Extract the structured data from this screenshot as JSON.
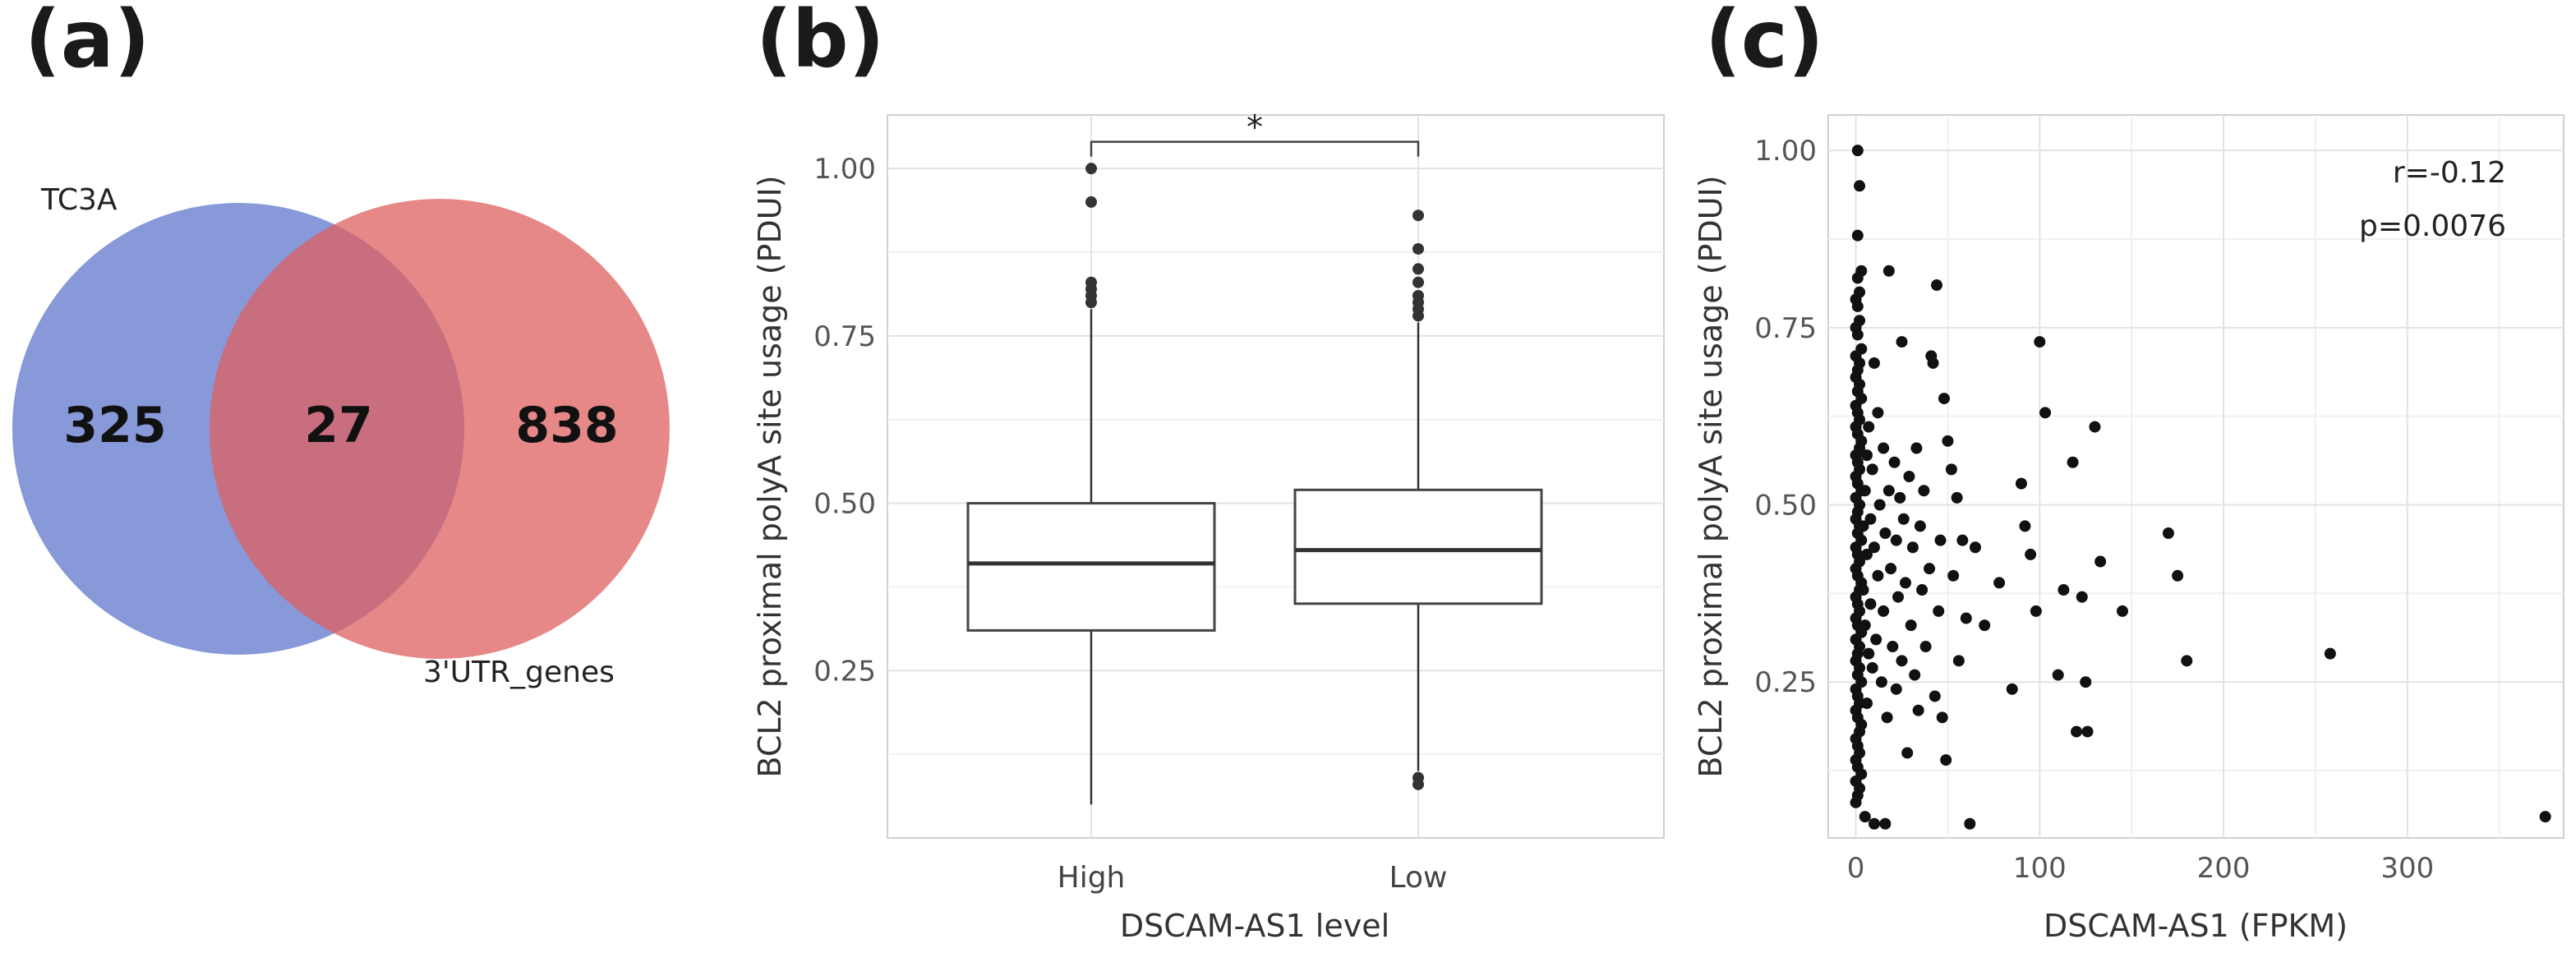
{
  "panels": {
    "a": "(a)",
    "b": "(b)",
    "c": "(c)"
  },
  "chart_data": [
    {
      "type": "venn",
      "sets": [
        {
          "name": "TC3A",
          "only_count": "325",
          "color": "#5f77cc"
        },
        {
          "name": "3'UTR_genes",
          "only_count": "838",
          "color": "#de6060"
        }
      ],
      "intersection": "27"
    },
    {
      "type": "box",
      "xlabel": "DSCAM-AS1 level",
      "ylabel": "BCL2 proximal polyA site usage (PDUI)",
      "ylim": [
        0.0,
        1.08
      ],
      "yticks": [
        "0.25",
        "0.50",
        "0.75",
        "1.00"
      ],
      "significance": "*",
      "groups": [
        {
          "name": "High",
          "min": 0.05,
          "q1": 0.31,
          "median": 0.41,
          "q3": 0.5,
          "max": 0.79,
          "outliers": [
            0.8,
            0.81,
            0.82,
            0.83,
            0.95,
            1.0
          ]
        },
        {
          "name": "Low",
          "min": 0.1,
          "q1": 0.35,
          "median": 0.43,
          "q3": 0.52,
          "max": 0.77,
          "outliers": [
            0.08,
            0.09,
            0.78,
            0.79,
            0.8,
            0.81,
            0.83,
            0.85,
            0.88,
            0.93
          ]
        }
      ]
    },
    {
      "type": "scatter",
      "xlabel": "DSCAM-AS1 (FPKM)",
      "ylabel": "BCL2 proximal polyA site usage (PDUI)",
      "xlim": [
        -15,
        385
      ],
      "ylim": [
        0.03,
        1.05
      ],
      "xticks": [
        "0",
        "100",
        "200",
        "300"
      ],
      "yticks": [
        "0.25",
        "0.50",
        "0.75",
        "1.00"
      ],
      "annotation": [
        "r=-0.12",
        "p=0.0076"
      ],
      "points": [
        [
          1,
          1.0
        ],
        [
          2,
          0.95
        ],
        [
          1,
          0.88
        ],
        [
          3,
          0.83
        ],
        [
          1,
          0.82
        ],
        [
          2,
          0.8
        ],
        [
          0,
          0.79
        ],
        [
          1,
          0.78
        ],
        [
          2,
          0.76
        ],
        [
          0,
          0.75
        ],
        [
          1,
          0.74
        ],
        [
          3,
          0.72
        ],
        [
          0,
          0.71
        ],
        [
          2,
          0.7
        ],
        [
          1,
          0.69
        ],
        [
          0,
          0.68
        ],
        [
          2,
          0.67
        ],
        [
          1,
          0.66
        ],
        [
          3,
          0.65
        ],
        [
          0,
          0.64
        ],
        [
          1,
          0.63
        ],
        [
          2,
          0.62
        ],
        [
          0,
          0.61
        ],
        [
          1,
          0.6
        ],
        [
          3,
          0.59
        ],
        [
          2,
          0.58
        ],
        [
          0,
          0.57
        ],
        [
          1,
          0.56
        ],
        [
          2,
          0.55
        ],
        [
          0,
          0.54
        ],
        [
          1,
          0.53
        ],
        [
          3,
          0.52
        ],
        [
          0,
          0.51
        ],
        [
          2,
          0.5
        ],
        [
          1,
          0.49
        ],
        [
          0,
          0.48
        ],
        [
          2,
          0.47
        ],
        [
          1,
          0.46
        ],
        [
          3,
          0.45
        ],
        [
          0,
          0.44
        ],
        [
          1,
          0.43
        ],
        [
          2,
          0.42
        ],
        [
          0,
          0.41
        ],
        [
          1,
          0.4
        ],
        [
          3,
          0.39
        ],
        [
          2,
          0.38
        ],
        [
          0,
          0.37
        ],
        [
          1,
          0.36
        ],
        [
          2,
          0.35
        ],
        [
          0,
          0.34
        ],
        [
          1,
          0.33
        ],
        [
          3,
          0.32
        ],
        [
          0,
          0.31
        ],
        [
          2,
          0.3
        ],
        [
          1,
          0.29
        ],
        [
          0,
          0.28
        ],
        [
          2,
          0.27
        ],
        [
          1,
          0.26
        ],
        [
          3,
          0.25
        ],
        [
          0,
          0.24
        ],
        [
          1,
          0.23
        ],
        [
          2,
          0.22
        ],
        [
          0,
          0.21
        ],
        [
          1,
          0.2
        ],
        [
          3,
          0.19
        ],
        [
          2,
          0.18
        ],
        [
          0,
          0.17
        ],
        [
          1,
          0.16
        ],
        [
          2,
          0.15
        ],
        [
          0,
          0.14
        ],
        [
          1,
          0.13
        ],
        [
          3,
          0.12
        ],
        [
          0,
          0.11
        ],
        [
          2,
          0.1
        ],
        [
          1,
          0.09
        ],
        [
          0,
          0.08
        ],
        [
          4,
          0.47
        ],
        [
          5,
          0.52
        ],
        [
          4,
          0.38
        ],
        [
          5,
          0.33
        ],
        [
          6,
          0.57
        ],
        [
          6,
          0.43
        ],
        [
          7,
          0.29
        ],
        [
          6,
          0.22
        ],
        [
          7,
          0.61
        ],
        [
          8,
          0.48
        ],
        [
          8,
          0.36
        ],
        [
          9,
          0.27
        ],
        [
          9,
          0.55
        ],
        [
          10,
          0.44
        ],
        [
          10,
          0.7
        ],
        [
          11,
          0.31
        ],
        [
          12,
          0.63
        ],
        [
          12,
          0.4
        ],
        [
          13,
          0.5
        ],
        [
          14,
          0.25
        ],
        [
          15,
          0.58
        ],
        [
          15,
          0.35
        ],
        [
          16,
          0.46
        ],
        [
          17,
          0.2
        ],
        [
          18,
          0.83
        ],
        [
          18,
          0.52
        ],
        [
          19,
          0.41
        ],
        [
          20,
          0.3
        ],
        [
          21,
          0.56
        ],
        [
          22,
          0.45
        ],
        [
          22,
          0.24
        ],
        [
          23,
          0.37
        ],
        [
          24,
          0.51
        ],
        [
          25,
          0.73
        ],
        [
          25,
          0.28
        ],
        [
          26,
          0.48
        ],
        [
          27,
          0.39
        ],
        [
          28,
          0.15
        ],
        [
          29,
          0.54
        ],
        [
          30,
          0.33
        ],
        [
          31,
          0.44
        ],
        [
          32,
          0.26
        ],
        [
          33,
          0.58
        ],
        [
          34,
          0.21
        ],
        [
          35,
          0.47
        ],
        [
          36,
          0.38
        ],
        [
          37,
          0.52
        ],
        [
          38,
          0.3
        ],
        [
          40,
          0.41
        ],
        [
          41,
          0.71
        ],
        [
          42,
          0.7
        ],
        [
          43,
          0.23
        ],
        [
          44,
          0.81
        ],
        [
          45,
          0.35
        ],
        [
          46,
          0.45
        ],
        [
          47,
          0.2
        ],
        [
          48,
          0.65
        ],
        [
          49,
          0.14
        ],
        [
          50,
          0.59
        ],
        [
          52,
          0.55
        ],
        [
          53,
          0.4
        ],
        [
          55,
          0.51
        ],
        [
          56,
          0.28
        ],
        [
          58,
          0.45
        ],
        [
          60,
          0.34
        ],
        [
          62,
          0.05
        ],
        [
          65,
          0.44
        ],
        [
          70,
          0.33
        ],
        [
          78,
          0.39
        ],
        [
          85,
          0.24
        ],
        [
          90,
          0.53
        ],
        [
          92,
          0.47
        ],
        [
          95,
          0.43
        ],
        [
          98,
          0.35
        ],
        [
          100,
          0.73
        ],
        [
          103,
          0.63
        ],
        [
          110,
          0.26
        ],
        [
          113,
          0.38
        ],
        [
          118,
          0.56
        ],
        [
          120,
          0.18
        ],
        [
          123,
          0.37
        ],
        [
          125,
          0.25
        ],
        [
          126,
          0.18
        ],
        [
          130,
          0.61
        ],
        [
          133,
          0.42
        ],
        [
          145,
          0.35
        ],
        [
          170,
          0.46
        ],
        [
          175,
          0.4
        ],
        [
          180,
          0.28
        ],
        [
          258,
          0.29
        ],
        [
          375,
          0.06
        ],
        [
          5,
          0.06
        ],
        [
          10,
          0.05
        ],
        [
          16,
          0.05
        ]
      ]
    }
  ]
}
